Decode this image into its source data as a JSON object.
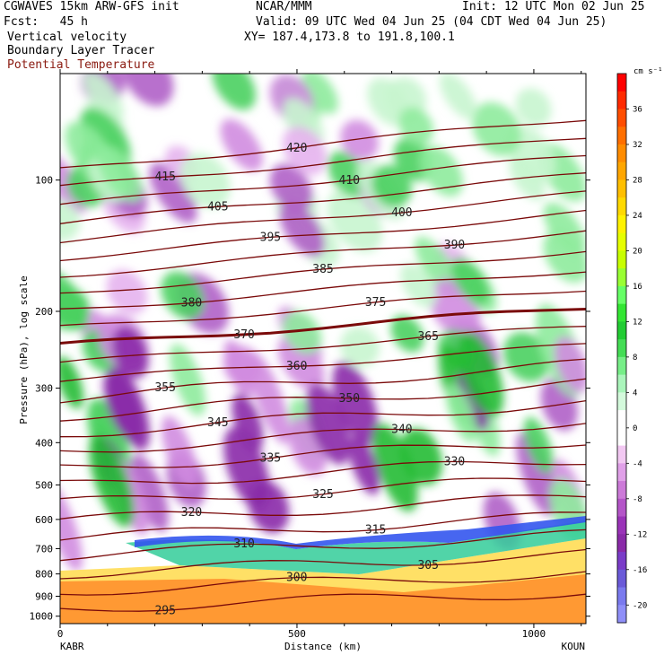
{
  "header": {
    "model": "CGWAVES 15km ARW-GFS init",
    "org": "NCAR/MMM",
    "init": "Init: 12 UTC Mon 02 Jun 25",
    "fcst": "Fcst:   45 h",
    "valid": "Valid: 09 UTC Wed 04 Jun 25 (04 CDT Wed 04 Jun 25)",
    "field1": "Vertical velocity",
    "field2": "Boundary Layer Tracer",
    "field3": "Potential Temperature",
    "xy": "XY= 187.4,173.8 to 191.8,100.1"
  },
  "colors": {
    "theta_contour": "#7a0a0a",
    "theta_label_text": "#222222"
  },
  "chart_data": {
    "type": "heatmap",
    "title": "",
    "xlabel": "Distance (km)",
    "ylabel": "Pressure (hPa), log scale",
    "x_ticks": [
      "0",
      "500",
      "1000"
    ],
    "x_tick_values": [
      0,
      500,
      1000
    ],
    "xlim": [
      0,
      1110
    ],
    "x_end_labels": [
      "KABR",
      "KOUN"
    ],
    "y_scale": "log",
    "y_ticks": [
      "100",
      "200",
      "300",
      "400",
      "500",
      "600",
      "700",
      "800",
      "900",
      "1000"
    ],
    "y_tick_values": [
      100,
      200,
      300,
      400,
      500,
      600,
      700,
      800,
      900,
      1000
    ],
    "ylim": [
      1040,
      57
    ],
    "colorbar": {
      "unit": "cm s⁻¹",
      "labels": [
        "36",
        "32",
        "28",
        "24",
        "20",
        "16",
        "12",
        "8",
        "4",
        "0",
        "-4",
        "-8",
        "-12",
        "-16",
        "-20"
      ],
      "label_values": [
        36,
        32,
        28,
        24,
        20,
        16,
        12,
        8,
        4,
        0,
        -4,
        -8,
        -12,
        -16,
        -20
      ],
      "colors": [
        "#ff0000",
        "#ff2a00",
        "#ff4d00",
        "#ff6f00",
        "#ff8c00",
        "#ffa600",
        "#ffbf00",
        "#ffd900",
        "#fff200",
        "#e6ff00",
        "#c8ff00",
        "#99ff33",
        "#66ff66",
        "#33e633",
        "#22cc33",
        "#44dd55",
        "#77ee88",
        "#aaf5bb",
        "#d4fadc",
        "#ffffff",
        "#ffffff",
        "#f2c8f2",
        "#e0a0e8",
        "#cc7ad8",
        "#b455c8",
        "#9a33b8",
        "#8a2aa8",
        "#7a3cc8",
        "#6a5ad8",
        "#7a7aee",
        "#8f8ff8"
      ]
    },
    "theta_contours": [
      {
        "label": "295"
      },
      {
        "label": "300"
      },
      {
        "label": "305"
      },
      {
        "label": "310"
      },
      {
        "label": "315"
      },
      {
        "label": "320"
      },
      {
        "label": "325"
      },
      {
        "label": "330"
      },
      {
        "label": "335"
      },
      {
        "label": "340"
      },
      {
        "label": "345"
      },
      {
        "label": "350"
      },
      {
        "label": "355"
      },
      {
        "label": "360"
      },
      {
        "label": "365"
      },
      {
        "label": "370"
      },
      {
        "label": "375"
      },
      {
        "label": "380"
      },
      {
        "label": "385"
      },
      {
        "label": "390"
      },
      {
        "label": "395"
      },
      {
        "label": "400"
      },
      {
        "label": "405"
      },
      {
        "label": "410"
      },
      {
        "label": "415"
      },
      {
        "label": "420"
      }
    ]
  }
}
